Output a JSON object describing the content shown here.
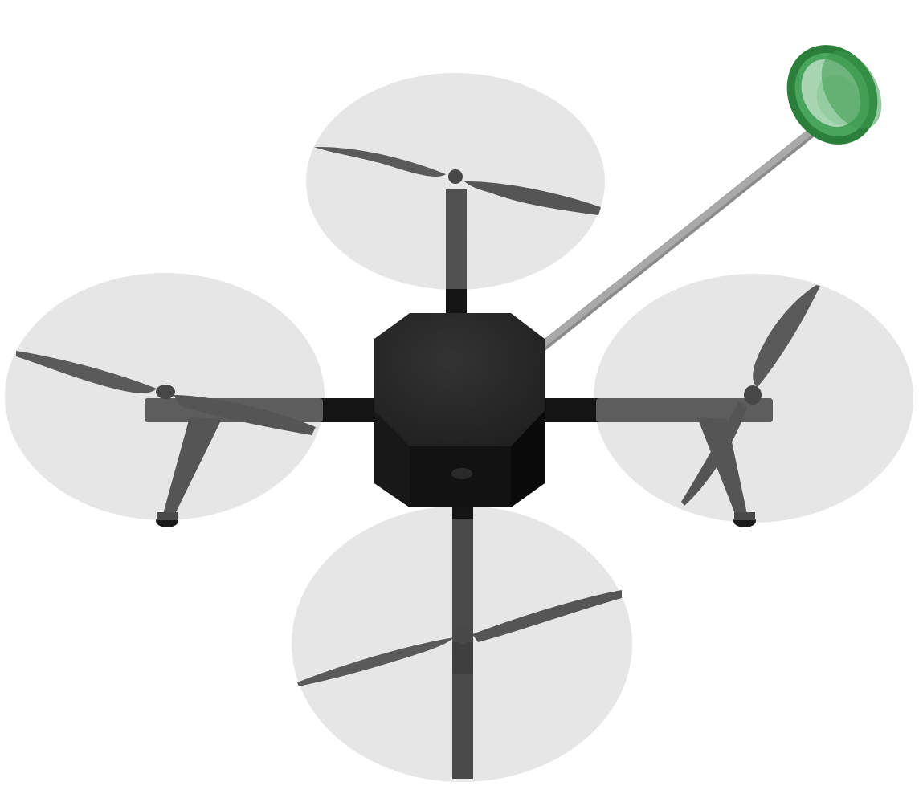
{
  "scene": {
    "subject": "quadcopter-drone-render",
    "view": "top-oblique",
    "background_color": "#ffffff",
    "colors": {
      "rotor_disc": "#e6e6e6",
      "rotor_disc_edge": "#d8d8d8",
      "propeller": "#5a5a5a",
      "propeller_dark": "#474747",
      "arm": "#141414",
      "motor_mount": "#6a6a6a",
      "body_top": "#282828",
      "body_side": "#121212",
      "landing_gear": "#555555",
      "foot": "#1a1a1a",
      "boom": "#a8a8a8",
      "ring_outer": "#2f8a3e",
      "ring_inner": "#a7d4b0"
    },
    "parts": {
      "rotors": [
        "front-rotor",
        "left-rotor",
        "right-rotor",
        "rear-rotor"
      ],
      "landing_feet": 2,
      "sensor_boom": "green-ring-sensor"
    }
  }
}
